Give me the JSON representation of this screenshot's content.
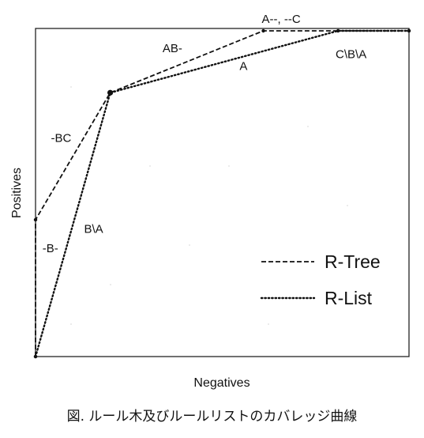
{
  "chart_data": {
    "type": "line",
    "title": "",
    "xlabel": "Negatives",
    "ylabel": "Positives",
    "xlim": [
      0,
      1
    ],
    "ylim": [
      0,
      1
    ],
    "grid": false,
    "legend_position": "bottom-right",
    "series": [
      {
        "name": "R-Tree",
        "line_style": "dashed",
        "points": [
          {
            "x": 0.0,
            "y": 0.0
          },
          {
            "x": 0.0,
            "y": 0.42
          },
          {
            "x": 0.2,
            "y": 0.81
          },
          {
            "x": 0.61,
            "y": 1.0
          },
          {
            "x": 1.0,
            "y": 1.0
          }
        ]
      },
      {
        "name": "R-List",
        "line_style": "dotted",
        "points": [
          {
            "x": 0.0,
            "y": 0.0
          },
          {
            "x": 0.2,
            "y": 0.81
          },
          {
            "x": 0.81,
            "y": 1.0
          },
          {
            "x": 1.0,
            "y": 1.0
          }
        ]
      }
    ],
    "annotations": [
      {
        "text": "A--, --C",
        "x": 0.61,
        "y": 1.0
      },
      {
        "text": "AB-",
        "x": 0.41,
        "y": 0.92
      },
      {
        "text": "A",
        "x": 0.54,
        "y": 0.87
      },
      {
        "text": "C\\B\\A",
        "x": 0.85,
        "y": 0.95
      },
      {
        "text": "-BC",
        "x": 0.1,
        "y": 0.64
      },
      {
        "text": "B\\A",
        "x": 0.13,
        "y": 0.38
      },
      {
        "text": "-B-",
        "x": 0.01,
        "y": 0.32
      }
    ]
  },
  "caption": "図. ルール木及びルールリストのカバレッジ曲線"
}
